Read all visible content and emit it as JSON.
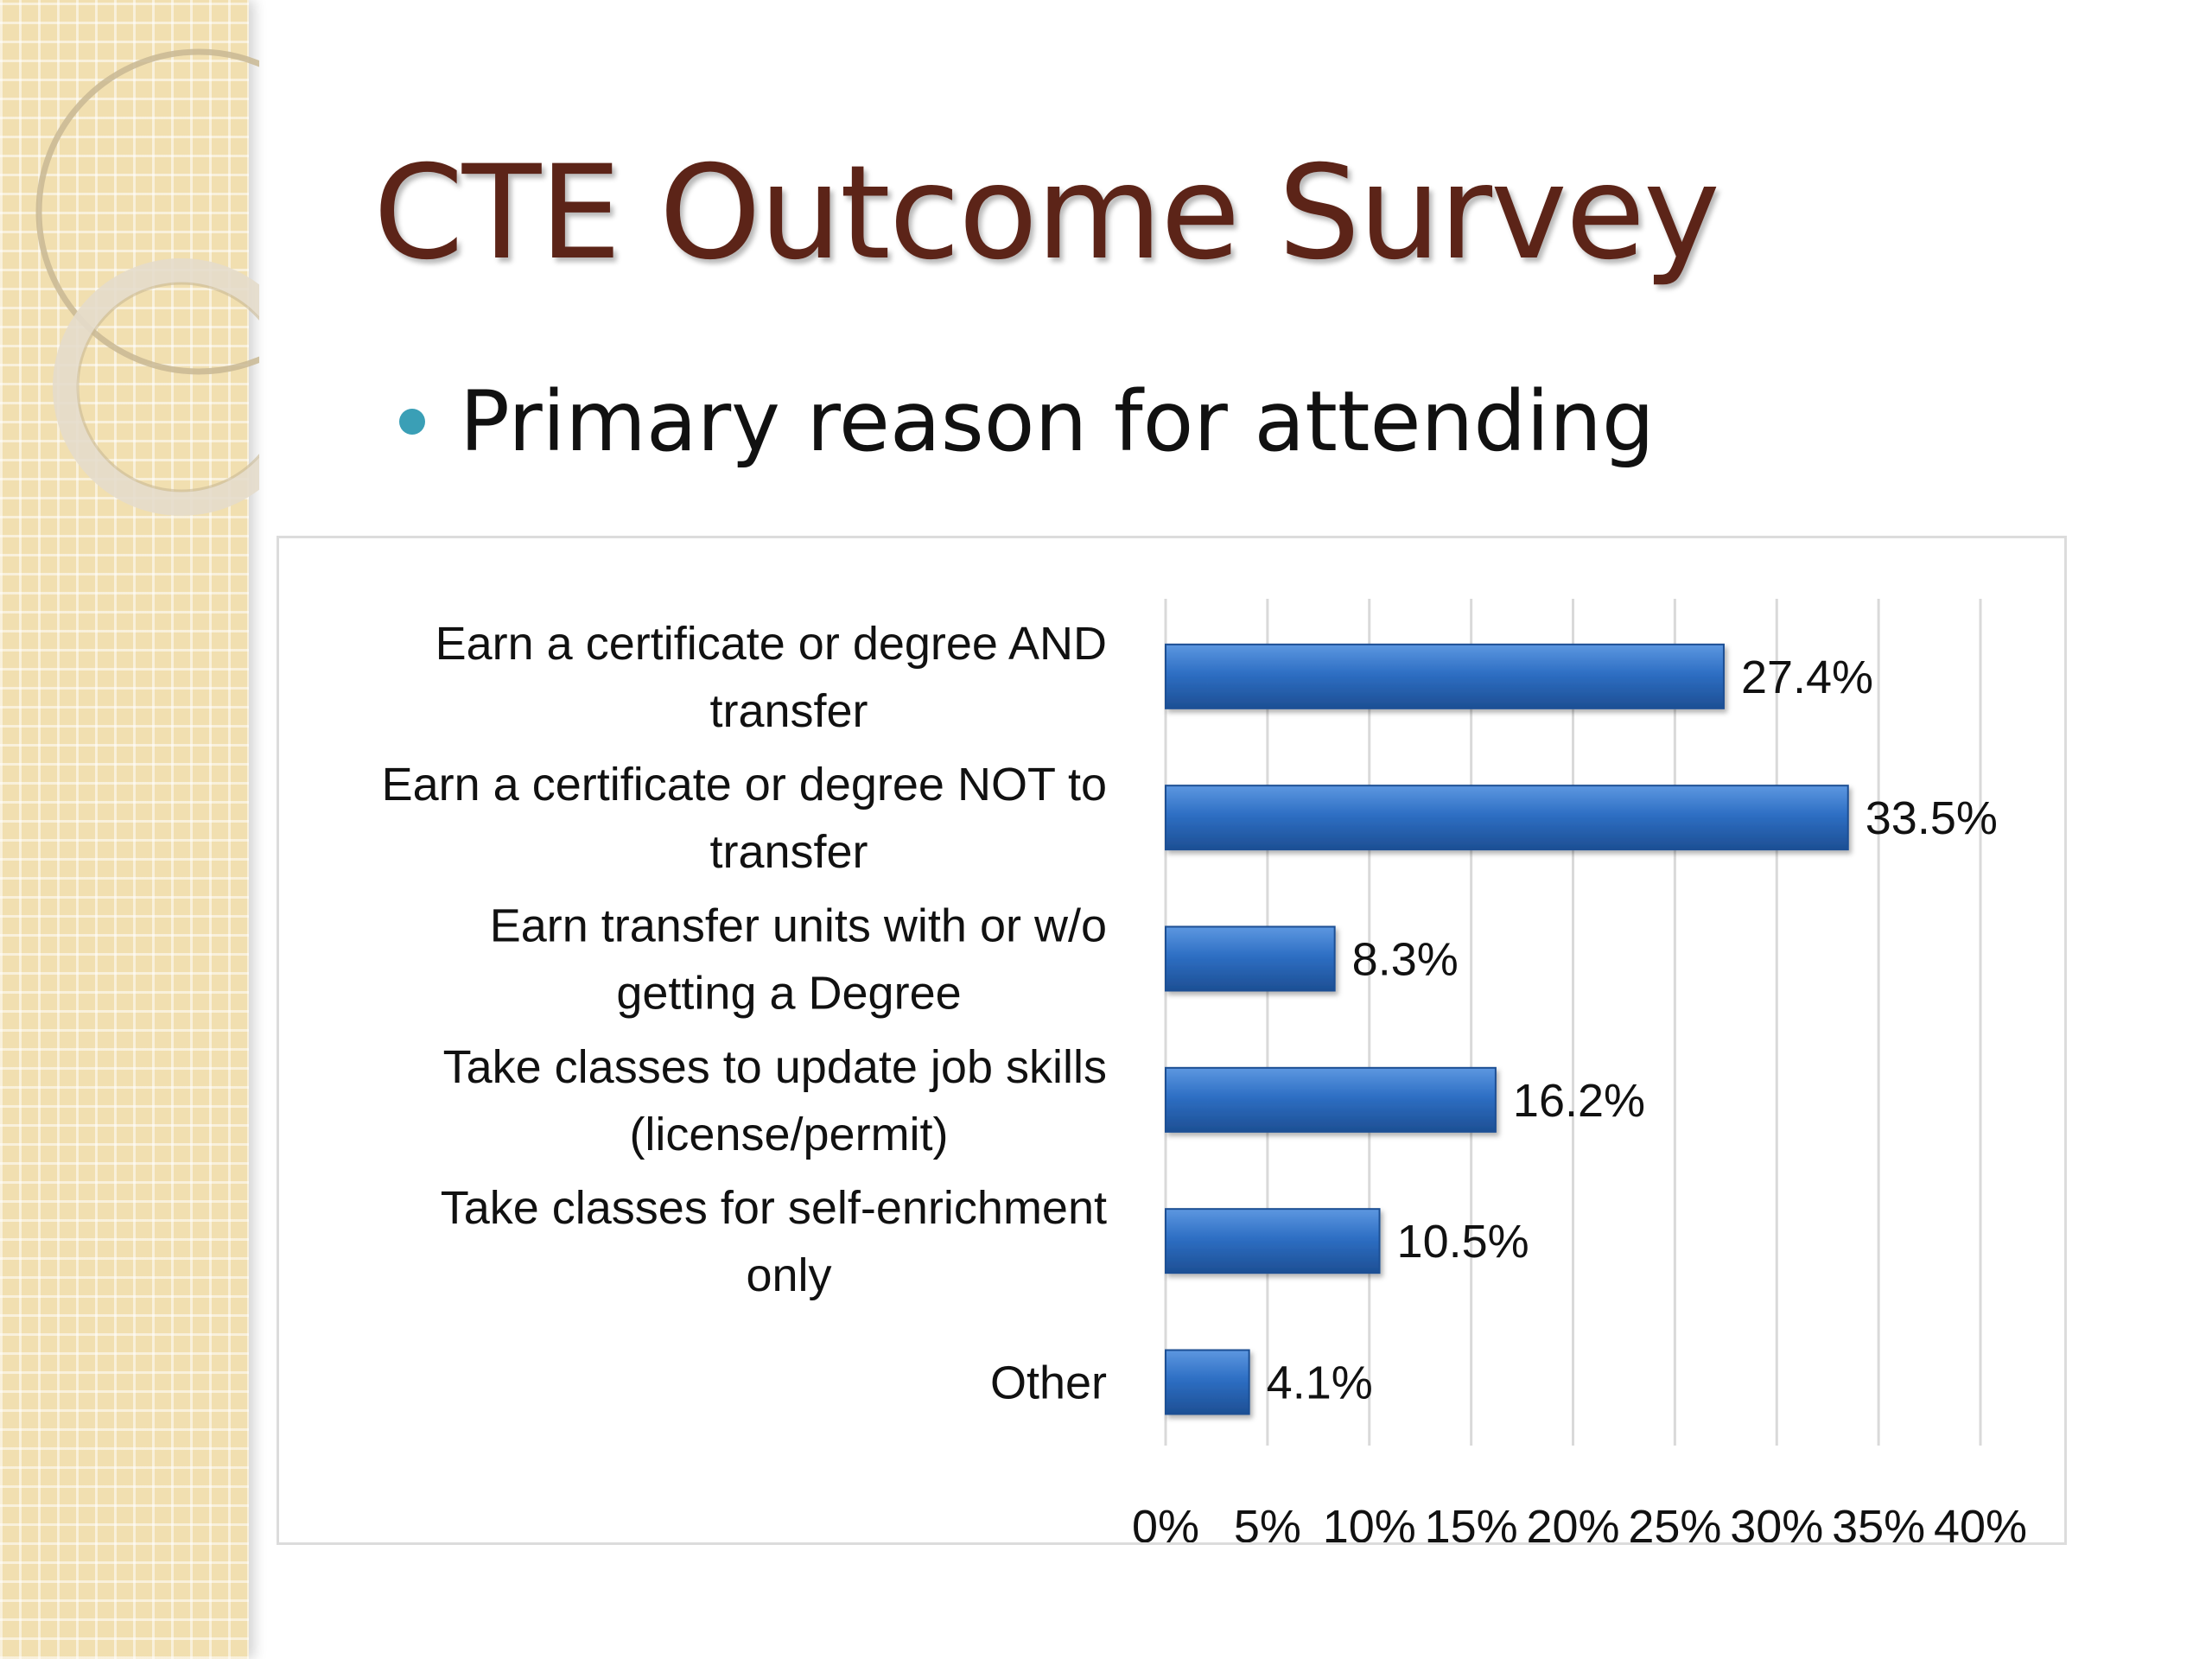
{
  "slide": {
    "title": "CTE Outcome Survey",
    "bullet": "Primary reason for attending"
  },
  "colors": {
    "title": "#5c2418",
    "bullet": "#3a9fb6",
    "bar": "#2e6fc4",
    "bar_dark": "#1d4f94",
    "bar_light": "#5d97e0",
    "grid": "#d9d9d9",
    "side_strip": "#f1dfb0"
  },
  "chart_data": {
    "type": "bar",
    "orientation": "horizontal",
    "categories": [
      [
        "Earn a certificate or degree AND",
        "transfer"
      ],
      [
        "Earn a certificate or degree NOT to",
        "transfer"
      ],
      [
        "Earn transfer units with or w/o",
        "getting a Degree"
      ],
      [
        "Take classes to update job skills",
        "(license/permit)"
      ],
      [
        "Take classes for self-enrichment",
        "only"
      ],
      [
        "Other"
      ]
    ],
    "values": [
      27.4,
      33.5,
      8.3,
      16.2,
      10.5,
      4.1
    ],
    "data_labels": [
      "27.4%",
      "33.5%",
      "8.3%",
      "16.2%",
      "10.5%",
      "4.1%"
    ],
    "xlim": [
      0,
      40
    ],
    "x_ticks": [
      0,
      5,
      10,
      15,
      20,
      25,
      30,
      35,
      40
    ],
    "x_tick_labels": [
      "0%",
      "5%",
      "10%",
      "15%",
      "20%",
      "25%",
      "30%",
      "35%",
      "40%"
    ],
    "grid": "vertical",
    "legend": "none"
  }
}
